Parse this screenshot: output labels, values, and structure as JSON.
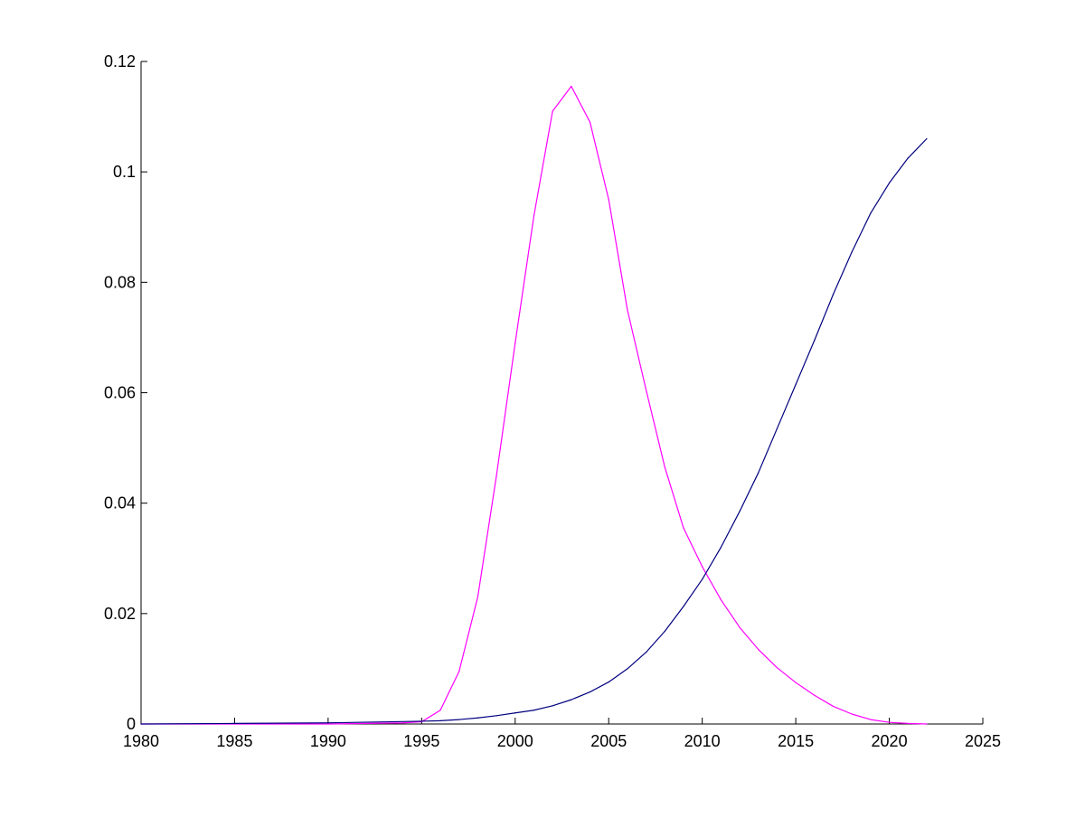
{
  "chart_data": {
    "type": "line",
    "title": "",
    "xlabel": "",
    "ylabel": "",
    "xlim": [
      1980,
      2025
    ],
    "ylim": [
      0,
      0.12
    ],
    "grid": false,
    "legend": "none",
    "x_ticks": [
      1980,
      1985,
      1990,
      1995,
      2000,
      2005,
      2010,
      2015,
      2020,
      2025
    ],
    "y_ticks": [
      0,
      0.02,
      0.04,
      0.06,
      0.08,
      0.1,
      0.12
    ],
    "x_tick_labels": [
      "1980",
      "1985",
      "1990",
      "1995",
      "2000",
      "2005",
      "2010",
      "2015",
      "2020",
      "2025"
    ],
    "y_tick_labels": [
      "0",
      "0.02",
      "0.04",
      "0.06",
      "0.08",
      "0.1",
      "0.12"
    ],
    "series": [
      {
        "color": "#ff00ff",
        "points": [
          [
            1980,
            0
          ],
          [
            1985,
            0
          ],
          [
            1990,
            0
          ],
          [
            1994,
            0.0002
          ],
          [
            1995,
            0.0004
          ],
          [
            1996,
            0.0025
          ],
          [
            1997,
            0.0095
          ],
          [
            1998,
            0.023
          ],
          [
            1999,
            0.045
          ],
          [
            2000,
            0.069
          ],
          [
            2001,
            0.092
          ],
          [
            2002,
            0.111
          ],
          [
            2003,
            0.1155
          ],
          [
            2004,
            0.109
          ],
          [
            2005,
            0.095
          ],
          [
            2006,
            0.075
          ],
          [
            2007,
            0.0605
          ],
          [
            2008,
            0.0465
          ],
          [
            2009,
            0.0355
          ],
          [
            2010,
            0.0285
          ],
          [
            2011,
            0.0225
          ],
          [
            2012,
            0.0175
          ],
          [
            2013,
            0.0135
          ],
          [
            2014,
            0.0102
          ],
          [
            2015,
            0.0075
          ],
          [
            2016,
            0.0052
          ],
          [
            2017,
            0.0032
          ],
          [
            2018,
            0.0018
          ],
          [
            2019,
            0.0008
          ],
          [
            2020,
            0.0003
          ],
          [
            2021,
            0.0001
          ],
          [
            2022,
            0
          ]
        ]
      },
      {
        "color": "#00007f",
        "points": [
          [
            1980,
            0
          ],
          [
            1985,
            0.0001
          ],
          [
            1990,
            0.0002
          ],
          [
            1995,
            0.0005
          ],
          [
            1996,
            0.0006
          ],
          [
            1997,
            0.0008
          ],
          [
            1998,
            0.0011
          ],
          [
            1999,
            0.0015
          ],
          [
            2000,
            0.002
          ],
          [
            2001,
            0.0025
          ],
          [
            2002,
            0.0033
          ],
          [
            2003,
            0.0044
          ],
          [
            2004,
            0.0058
          ],
          [
            2005,
            0.0076
          ],
          [
            2006,
            0.01
          ],
          [
            2007,
            0.013
          ],
          [
            2008,
            0.0168
          ],
          [
            2009,
            0.0213
          ],
          [
            2010,
            0.0262
          ],
          [
            2011,
            0.032
          ],
          [
            2012,
            0.0385
          ],
          [
            2013,
            0.0455
          ],
          [
            2014,
            0.0535
          ],
          [
            2015,
            0.0615
          ],
          [
            2016,
            0.0695
          ],
          [
            2017,
            0.0778
          ],
          [
            2018,
            0.0855
          ],
          [
            2019,
            0.0925
          ],
          [
            2020,
            0.098
          ],
          [
            2021,
            0.1025
          ],
          [
            2022,
            0.106
          ]
        ]
      }
    ]
  }
}
